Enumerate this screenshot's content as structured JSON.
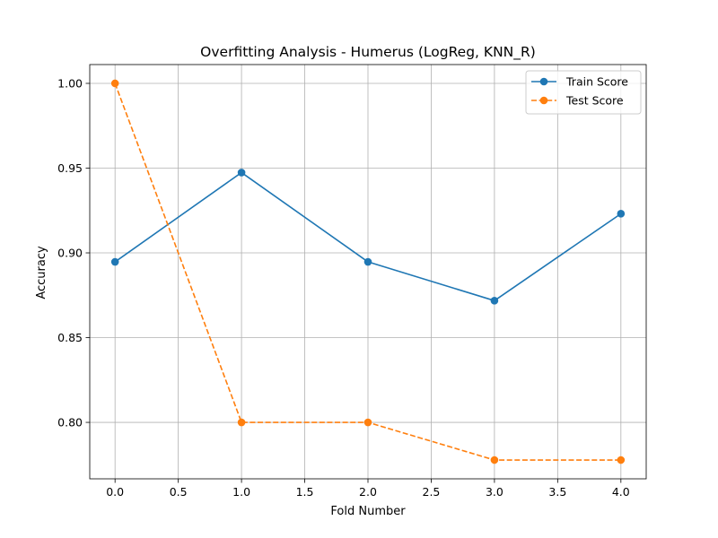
{
  "chart_data": {
    "type": "line",
    "title": "Overfitting Analysis - Humerus (LogReg, KNN_R)",
    "xlabel": "Fold Number",
    "ylabel": "Accuracy",
    "x": [
      0,
      1,
      2,
      3,
      4
    ],
    "xlim": [
      -0.2,
      4.2
    ],
    "ylim": [
      0.7667,
      1.0111
    ],
    "xticks": [
      0.0,
      0.5,
      1.0,
      1.5,
      2.0,
      2.5,
      3.0,
      3.5,
      4.0
    ],
    "xtick_labels": [
      "0.0",
      "0.5",
      "1.0",
      "1.5",
      "2.0",
      "2.5",
      "3.0",
      "3.5",
      "4.0"
    ],
    "yticks": [
      0.8,
      0.85,
      0.9,
      0.95,
      1.0
    ],
    "ytick_labels": [
      "0.80",
      "0.85",
      "0.90",
      "0.95",
      "1.00"
    ],
    "grid": true,
    "legend_position": "top-right",
    "series": [
      {
        "name": "Train Score",
        "values": [
          0.8947,
          0.9474,
          0.8947,
          0.8718,
          0.9231
        ],
        "color": "#1f77b4",
        "line_style": "solid",
        "marker": "circle"
      },
      {
        "name": "Test Score",
        "values": [
          1.0,
          0.8,
          0.8,
          0.7778,
          0.7778
        ],
        "color": "#ff7f0e",
        "line_style": "dashed",
        "marker": "circle"
      }
    ]
  }
}
